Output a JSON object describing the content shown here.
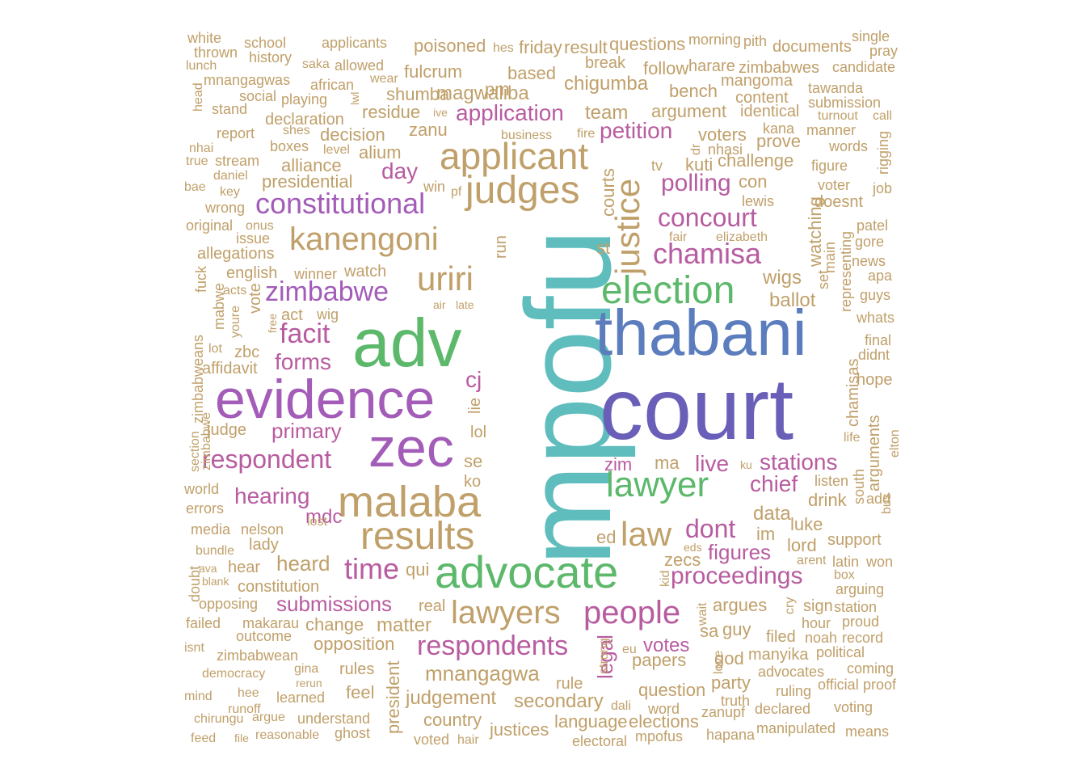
{
  "words": [
    {
      "text": "mpofu",
      "color": "#5fbdbd"
    },
    {
      "text": "court",
      "color": "#6a5fb8"
    },
    {
      "text": "adv",
      "color": "#5cb86a"
    },
    {
      "text": "thabani",
      "color": "#5c7dbd"
    },
    {
      "text": "evidence",
      "color": "#a35cb8"
    },
    {
      "text": "zec",
      "color": "#a35cb8"
    },
    {
      "text": "advocate",
      "color": "#5cb86a"
    },
    {
      "text": "malaba",
      "color": "#c0a06a"
    },
    {
      "text": "results",
      "color": "#c0a06a"
    },
    {
      "text": "applicant",
      "color": "#c0a06a"
    },
    {
      "text": "judges",
      "color": "#c0a06a"
    },
    {
      "text": "election",
      "color": "#5cb86a"
    },
    {
      "text": "lawyer",
      "color": "#5cb86a"
    },
    {
      "text": "justice",
      "color": "#c0a06a"
    },
    {
      "text": "uriri",
      "color": "#c0a06a"
    },
    {
      "text": "kanengoni",
      "color": "#c0a06a"
    },
    {
      "text": "constitutional",
      "color": "#a35cb8"
    },
    {
      "text": "respondent",
      "color": "#b85ca0"
    },
    {
      "text": "zimbabwe",
      "color": "#a35cb8"
    },
    {
      "text": "chamisa",
      "color": "#b85ca0"
    },
    {
      "text": "concourt",
      "color": "#b85ca0"
    },
    {
      "text": "law",
      "color": "#c0a06a"
    },
    {
      "text": "lawyers",
      "color": "#c0a06a"
    },
    {
      "text": "people",
      "color": "#b85ca0"
    },
    {
      "text": "respondents",
      "color": "#b85ca0"
    },
    {
      "text": "proceedings",
      "color": "#b85ca0"
    },
    {
      "text": "time",
      "color": "#b85ca0"
    },
    {
      "text": "facit",
      "color": "#b85ca0"
    },
    {
      "text": "dont",
      "color": "#b85ca0"
    },
    {
      "text": "petition",
      "color": "#b85ca0"
    },
    {
      "text": "application",
      "color": "#b85ca0"
    },
    {
      "text": "polling",
      "color": "#b85ca0"
    },
    {
      "text": "chief",
      "color": "#b85ca0"
    },
    {
      "text": "stations",
      "color": "#b85ca0"
    },
    {
      "text": "forms",
      "color": "#b85ca0"
    },
    {
      "text": "hearing",
      "color": "#b85ca0"
    },
    {
      "text": "submissions",
      "color": "#b85ca0"
    },
    {
      "text": "figures",
      "color": "#b85ca0"
    },
    {
      "text": "votes",
      "color": "#b85ca0"
    },
    {
      "text": "mdc",
      "color": "#b85ca0"
    },
    {
      "text": "cj",
      "color": "#b85ca0"
    },
    {
      "text": "day",
      "color": "#b85ca0"
    },
    {
      "text": "live",
      "color": "#b85ca0"
    },
    {
      "text": "legal",
      "color": "#b85ca0"
    },
    {
      "text": "zim",
      "color": "#b85ca0"
    },
    {
      "text": "primary",
      "color": "#b85ca0"
    },
    {
      "text": "heard",
      "color": "#c0a06a"
    },
    {
      "text": "residue",
      "color": "#c0a06a"
    },
    {
      "text": "magwaliba",
      "color": "#c0a06a"
    },
    {
      "text": "chigumba",
      "color": "#c0a06a"
    },
    {
      "text": "team",
      "color": "#c0a06a"
    },
    {
      "text": "argument",
      "color": "#c0a06a"
    },
    {
      "text": "mnangagwa",
      "color": "#c0a06a"
    },
    {
      "text": "judgement",
      "color": "#c0a06a"
    },
    {
      "text": "secondary",
      "color": "#c0a06a"
    },
    {
      "text": "matter",
      "color": "#c0a06a"
    },
    {
      "text": "data",
      "color": "#c0a06a"
    },
    {
      "text": "wigs",
      "color": "#c0a06a"
    },
    {
      "text": "ballot",
      "color": "#c0a06a"
    },
    {
      "text": "based",
      "color": "#c0a06a"
    },
    {
      "text": "decision",
      "color": "#c0a06a"
    },
    {
      "text": "zanu",
      "color": "#c0a06a"
    },
    {
      "text": "alium",
      "color": "#c0a06a"
    },
    {
      "text": "alliance",
      "color": "#c0a06a"
    },
    {
      "text": "presidential",
      "color": "#c0a06a"
    },
    {
      "text": "watching",
      "color": "#c0a06a"
    },
    {
      "text": "papers",
      "color": "#c0a06a"
    },
    {
      "text": "question",
      "color": "#c0a06a"
    },
    {
      "text": "argues",
      "color": "#c0a06a"
    },
    {
      "text": "guy",
      "color": "#c0a06a"
    },
    {
      "text": "ma",
      "color": "#c0a06a"
    },
    {
      "text": "im",
      "color": "#c0a06a"
    },
    {
      "text": "ed",
      "color": "#c0a06a"
    },
    {
      "text": "zecs",
      "color": "#c0a06a"
    },
    {
      "text": "kuti",
      "color": "#c0a06a"
    },
    {
      "text": "challenge",
      "color": "#c0a06a"
    },
    {
      "text": "opposition",
      "color": "#c0a06a"
    },
    {
      "text": "change",
      "color": "#c0a06a"
    },
    {
      "text": "country",
      "color": "#c0a06a"
    },
    {
      "text": "justices",
      "color": "#c0a06a"
    },
    {
      "text": "language",
      "color": "#c0a06a"
    },
    {
      "text": "elections",
      "color": "#c0a06a"
    },
    {
      "text": "rules",
      "color": "#c0a06a"
    },
    {
      "text": "feel",
      "color": "#c0a06a"
    },
    {
      "text": "party",
      "color": "#c0a06a"
    },
    {
      "text": "lord",
      "color": "#c0a06a"
    },
    {
      "text": "luke",
      "color": "#c0a06a"
    },
    {
      "text": "drink",
      "color": "#c0a06a"
    },
    {
      "text": "god",
      "color": "#c0a06a"
    },
    {
      "text": "sa",
      "color": "#c0a06a"
    },
    {
      "text": "president",
      "color": "#c0a06a"
    },
    {
      "text": "rule",
      "color": "#c0a06a"
    },
    {
      "text": "courts",
      "color": "#c0a06a"
    },
    {
      "text": "st",
      "color": "#c0a06a"
    },
    {
      "text": "run",
      "color": "#c0a06a"
    },
    {
      "text": "se",
      "color": "#c0a06a"
    },
    {
      "text": "ko",
      "color": "#c0a06a"
    },
    {
      "text": "lol",
      "color": "#c0a06a"
    },
    {
      "text": "lie",
      "color": "#c0a06a"
    },
    {
      "text": "qui",
      "color": "#c0a06a"
    },
    {
      "text": "real",
      "color": "#c0a06a"
    },
    {
      "text": "pm",
      "color": "#c0a06a"
    },
    {
      "text": "fulcrum",
      "color": "#c0a06a"
    },
    {
      "text": "shumba",
      "color": "#c0a06a"
    },
    {
      "text": "poisoned",
      "color": "#c0a06a"
    },
    {
      "text": "friday",
      "color": "#c0a06a"
    },
    {
      "text": "result",
      "color": "#c0a06a"
    },
    {
      "text": "questions",
      "color": "#c0a06a"
    },
    {
      "text": "break",
      "color": "#c0a06a"
    },
    {
      "text": "follow",
      "color": "#c0a06a"
    },
    {
      "text": "bench",
      "color": "#c0a06a"
    },
    {
      "text": "voters",
      "color": "#c0a06a"
    },
    {
      "text": "con",
      "color": "#c0a06a"
    },
    {
      "text": "prove",
      "color": "#c0a06a"
    },
    {
      "text": "identical",
      "color": "#c0a06a"
    },
    {
      "text": "content",
      "color": "#c0a06a"
    },
    {
      "text": "mangoma",
      "color": "#c0a06a"
    },
    {
      "text": "harare",
      "color": "#c0a06a"
    },
    {
      "text": "zimbabwes",
      "color": "#c0a06a"
    },
    {
      "text": "morning",
      "color": "#c0a06a"
    },
    {
      "text": "pith",
      "color": "#c0a06a"
    },
    {
      "text": "documents",
      "color": "#c0a06a"
    },
    {
      "text": "single",
      "color": "#c0a06a"
    },
    {
      "text": "pray",
      "color": "#c0a06a"
    },
    {
      "text": "candidate",
      "color": "#c0a06a"
    },
    {
      "text": "tawanda",
      "color": "#c0a06a"
    },
    {
      "text": "submission",
      "color": "#c0a06a"
    },
    {
      "text": "turnout",
      "color": "#c0a06a"
    },
    {
      "text": "call",
      "color": "#c0a06a"
    },
    {
      "text": "manner",
      "color": "#c0a06a"
    },
    {
      "text": "words",
      "color": "#c0a06a"
    },
    {
      "text": "rigging",
      "color": "#c0a06a"
    },
    {
      "text": "figure",
      "color": "#c0a06a"
    },
    {
      "text": "voter",
      "color": "#c0a06a"
    },
    {
      "text": "job",
      "color": "#c0a06a"
    },
    {
      "text": "doesnt",
      "color": "#c0a06a"
    },
    {
      "text": "patel",
      "color": "#c0a06a"
    },
    {
      "text": "gore",
      "color": "#c0a06a"
    },
    {
      "text": "news",
      "color": "#c0a06a"
    },
    {
      "text": "apa",
      "color": "#c0a06a"
    },
    {
      "text": "guys",
      "color": "#c0a06a"
    },
    {
      "text": "whats",
      "color": "#c0a06a"
    },
    {
      "text": "final",
      "color": "#c0a06a"
    },
    {
      "text": "didnt",
      "color": "#c0a06a"
    },
    {
      "text": "hope",
      "color": "#c0a06a"
    },
    {
      "text": "life",
      "color": "#c0a06a"
    },
    {
      "text": "elton",
      "color": "#c0a06a"
    },
    {
      "text": "main",
      "color": "#c0a06a"
    },
    {
      "text": "representing",
      "color": "#c0a06a"
    },
    {
      "text": "set",
      "color": "#c0a06a"
    },
    {
      "text": "chamisas",
      "color": "#c0a06a"
    },
    {
      "text": "arguments",
      "color": "#c0a06a"
    },
    {
      "text": "lewis",
      "color": "#c0a06a"
    },
    {
      "text": "kana",
      "color": "#c0a06a"
    },
    {
      "text": "nhasi",
      "color": "#c0a06a"
    },
    {
      "text": "dr",
      "color": "#c0a06a"
    },
    {
      "text": "tv",
      "color": "#c0a06a"
    },
    {
      "text": "fair",
      "color": "#c0a06a"
    },
    {
      "text": "elizabeth",
      "color": "#c0a06a"
    },
    {
      "text": "listen",
      "color": "#c0a06a"
    },
    {
      "text": "south",
      "color": "#c0a06a"
    },
    {
      "text": "add",
      "color": "#c0a06a"
    },
    {
      "text": "bus",
      "color": "#c0a06a"
    },
    {
      "text": "support",
      "color": "#c0a06a"
    },
    {
      "text": "latin",
      "color": "#c0a06a"
    },
    {
      "text": "won",
      "color": "#c0a06a"
    },
    {
      "text": "arent",
      "color": "#c0a06a"
    },
    {
      "text": "box",
      "color": "#c0a06a"
    },
    {
      "text": "arguing",
      "color": "#c0a06a"
    },
    {
      "text": "sign",
      "color": "#c0a06a"
    },
    {
      "text": "station",
      "color": "#c0a06a"
    },
    {
      "text": "hour",
      "color": "#c0a06a"
    },
    {
      "text": "proud",
      "color": "#c0a06a"
    },
    {
      "text": "cry",
      "color": "#c0a06a"
    },
    {
      "text": "filed",
      "color": "#c0a06a"
    },
    {
      "text": "noah",
      "color": "#c0a06a"
    },
    {
      "text": "record",
      "color": "#c0a06a"
    },
    {
      "text": "political",
      "color": "#c0a06a"
    },
    {
      "text": "manyika",
      "color": "#c0a06a"
    },
    {
      "text": "advocates",
      "color": "#c0a06a"
    },
    {
      "text": "coming",
      "color": "#c0a06a"
    },
    {
      "text": "official",
      "color": "#c0a06a"
    },
    {
      "text": "proof",
      "color": "#c0a06a"
    },
    {
      "text": "ruling",
      "color": "#c0a06a"
    },
    {
      "text": "truth",
      "color": "#c0a06a"
    },
    {
      "text": "declared",
      "color": "#c0a06a"
    },
    {
      "text": "voting",
      "color": "#c0a06a"
    },
    {
      "text": "hapana",
      "color": "#c0a06a"
    },
    {
      "text": "manipulated",
      "color": "#c0a06a"
    },
    {
      "text": "means",
      "color": "#c0a06a"
    },
    {
      "text": "zanupf",
      "color": "#c0a06a"
    },
    {
      "text": "mpofus",
      "color": "#c0a06a"
    },
    {
      "text": "electoral",
      "color": "#c0a06a"
    },
    {
      "text": "word",
      "color": "#c0a06a"
    },
    {
      "text": "dali",
      "color": "#c0a06a"
    },
    {
      "text": "love",
      "color": "#c0a06a"
    },
    {
      "text": "eu",
      "color": "#c0a06a"
    },
    {
      "text": "strong",
      "color": "#c0a06a"
    },
    {
      "text": "wait",
      "color": "#c0a06a"
    },
    {
      "text": "kid",
      "color": "#c0a06a"
    },
    {
      "text": "eds",
      "color": "#c0a06a"
    },
    {
      "text": "ku",
      "color": "#c0a06a"
    },
    {
      "text": "hair",
      "color": "#c0a06a"
    },
    {
      "text": "voted",
      "color": "#c0a06a"
    },
    {
      "text": "white",
      "color": "#c0a06a"
    },
    {
      "text": "school",
      "color": "#c0a06a"
    },
    {
      "text": "applicants",
      "color": "#c0a06a"
    },
    {
      "text": "hes",
      "color": "#c0a06a"
    },
    {
      "text": "thrown",
      "color": "#c0a06a"
    },
    {
      "text": "history",
      "color": "#c0a06a"
    },
    {
      "text": "lunch",
      "color": "#c0a06a"
    },
    {
      "text": "saka",
      "color": "#c0a06a"
    },
    {
      "text": "allowed",
      "color": "#c0a06a"
    },
    {
      "text": "wear",
      "color": "#c0a06a"
    },
    {
      "text": "head",
      "color": "#c0a06a"
    },
    {
      "text": "mnangagwas",
      "color": "#c0a06a"
    },
    {
      "text": "african",
      "color": "#c0a06a"
    },
    {
      "text": "lwl",
      "color": "#c0a06a"
    },
    {
      "text": "stand",
      "color": "#c0a06a"
    },
    {
      "text": "social",
      "color": "#c0a06a"
    },
    {
      "text": "playing",
      "color": "#c0a06a"
    },
    {
      "text": "ive",
      "color": "#c0a06a"
    },
    {
      "text": "declaration",
      "color": "#c0a06a"
    },
    {
      "text": "shes",
      "color": "#c0a06a"
    },
    {
      "text": "report",
      "color": "#c0a06a"
    },
    {
      "text": "business",
      "color": "#c0a06a"
    },
    {
      "text": "fire",
      "color": "#c0a06a"
    },
    {
      "text": "nhai",
      "color": "#c0a06a"
    },
    {
      "text": "level",
      "color": "#c0a06a"
    },
    {
      "text": "boxes",
      "color": "#c0a06a"
    },
    {
      "text": "true",
      "color": "#c0a06a"
    },
    {
      "text": "stream",
      "color": "#c0a06a"
    },
    {
      "text": "daniel",
      "color": "#c0a06a"
    },
    {
      "text": "bae",
      "color": "#c0a06a"
    },
    {
      "text": "key",
      "color": "#c0a06a"
    },
    {
      "text": "win",
      "color": "#c0a06a"
    },
    {
      "text": "pf",
      "color": "#c0a06a"
    },
    {
      "text": "wrong",
      "color": "#c0a06a"
    },
    {
      "text": "original",
      "color": "#c0a06a"
    },
    {
      "text": "onus",
      "color": "#c0a06a"
    },
    {
      "text": "issue",
      "color": "#c0a06a"
    },
    {
      "text": "allegations",
      "color": "#c0a06a"
    },
    {
      "text": "fuck",
      "color": "#c0a06a"
    },
    {
      "text": "english",
      "color": "#c0a06a"
    },
    {
      "text": "winner",
      "color": "#c0a06a"
    },
    {
      "text": "watch",
      "color": "#c0a06a"
    },
    {
      "text": "acts",
      "color": "#c0a06a"
    },
    {
      "text": "mabwe",
      "color": "#c0a06a"
    },
    {
      "text": "vote",
      "color": "#c0a06a"
    },
    {
      "text": "air",
      "color": "#c0a06a"
    },
    {
      "text": "late",
      "color": "#c0a06a"
    },
    {
      "text": "act",
      "color": "#c0a06a"
    },
    {
      "text": "wig",
      "color": "#c0a06a"
    },
    {
      "text": "youre",
      "color": "#c0a06a"
    },
    {
      "text": "free",
      "color": "#c0a06a"
    },
    {
      "text": "zbc",
      "color": "#c0a06a"
    },
    {
      "text": "lot",
      "color": "#c0a06a"
    },
    {
      "text": "affidavit",
      "color": "#c0a06a"
    },
    {
      "text": "zimbabweans",
      "color": "#c0a06a"
    },
    {
      "text": "zimbabwe",
      "color": "#c0a06a"
    },
    {
      "text": "judge",
      "color": "#c0a06a"
    },
    {
      "text": "section",
      "color": "#c0a06a"
    },
    {
      "text": "world",
      "color": "#c0a06a"
    },
    {
      "text": "errors",
      "color": "#c0a06a"
    },
    {
      "text": "media",
      "color": "#c0a06a"
    },
    {
      "text": "nelson",
      "color": "#c0a06a"
    },
    {
      "text": "lost",
      "color": "#c0a06a"
    },
    {
      "text": "lady",
      "color": "#c0a06a"
    },
    {
      "text": "bundle",
      "color": "#c0a06a"
    },
    {
      "text": "ava",
      "color": "#c0a06a"
    },
    {
      "text": "hear",
      "color": "#c0a06a"
    },
    {
      "text": "blank",
      "color": "#c0a06a"
    },
    {
      "text": "doubt",
      "color": "#c0a06a"
    },
    {
      "text": "constitution",
      "color": "#c0a06a"
    },
    {
      "text": "opposing",
      "color": "#c0a06a"
    },
    {
      "text": "failed",
      "color": "#c0a06a"
    },
    {
      "text": "makarau",
      "color": "#c0a06a"
    },
    {
      "text": "outcome",
      "color": "#c0a06a"
    },
    {
      "text": "isnt",
      "color": "#c0a06a"
    },
    {
      "text": "zimbabwean",
      "color": "#c0a06a"
    },
    {
      "text": "democracy",
      "color": "#c0a06a"
    },
    {
      "text": "gina",
      "color": "#c0a06a"
    },
    {
      "text": "rerun",
      "color": "#c0a06a"
    },
    {
      "text": "mind",
      "color": "#c0a06a"
    },
    {
      "text": "hee",
      "color": "#c0a06a"
    },
    {
      "text": "learned",
      "color": "#c0a06a"
    },
    {
      "text": "runoff",
      "color": "#c0a06a"
    },
    {
      "text": "chirungu",
      "color": "#c0a06a"
    },
    {
      "text": "argue",
      "color": "#c0a06a"
    },
    {
      "text": "understand",
      "color": "#c0a06a"
    },
    {
      "text": "feed",
      "color": "#c0a06a"
    },
    {
      "text": "file",
      "color": "#c0a06a"
    },
    {
      "text": "reasonable",
      "color": "#c0a06a"
    },
    {
      "text": "ghost",
      "color": "#c0a06a"
    }
  ]
}
